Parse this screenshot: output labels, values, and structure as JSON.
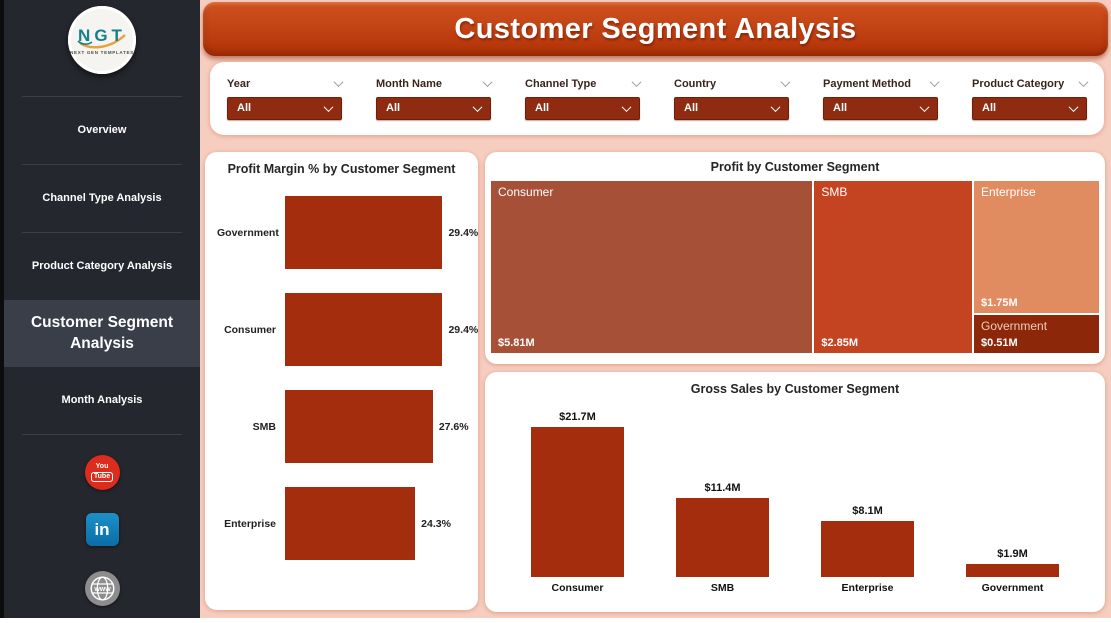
{
  "header": {
    "title": "Customer Segment Analysis"
  },
  "sidebar": {
    "logo": {
      "text": "NGT",
      "subtext": "NEXT GEN TEMPLATES"
    },
    "items": [
      {
        "label": "Overview",
        "active": false
      },
      {
        "label": "Channel Type Analysis",
        "active": false
      },
      {
        "label": "Product Category Analysis",
        "active": false
      },
      {
        "label": "Customer Segment Analysis",
        "active": true
      },
      {
        "label": "Month Analysis",
        "active": false
      }
    ],
    "social": [
      {
        "icon": "youtube-icon",
        "line1": "You",
        "line2": "Tube",
        "color": "#DD2C1E"
      },
      {
        "icon": "linkedin-icon",
        "text": "in",
        "color": "#1380B5"
      },
      {
        "icon": "website-globe-icon",
        "text": "www",
        "color": "#8D8D8D"
      }
    ]
  },
  "filters": [
    {
      "label": "Year",
      "value": "All"
    },
    {
      "label": "Month Name",
      "value": "All"
    },
    {
      "label": "Channel Type",
      "value": "All"
    },
    {
      "label": "Country",
      "value": "All"
    },
    {
      "label": "Payment Method",
      "value": "All"
    },
    {
      "label": "Product Category",
      "value": "All"
    }
  ],
  "chart_data": [
    {
      "type": "bar",
      "orientation": "horizontal",
      "title": "Profit Margin % by Customer Segment",
      "categories": [
        "Government",
        "Consumer",
        "SMB",
        "Enterprise"
      ],
      "values": [
        29.4,
        29.4,
        27.6,
        24.3
      ],
      "value_labels": [
        "29.4%",
        "29.4%",
        "27.6%",
        "24.3%"
      ],
      "bar_color": "#A32D0C",
      "axes": "none",
      "legend": "none"
    },
    {
      "type": "treemap",
      "title": "Profit by Customer Segment",
      "items": [
        {
          "name": "Consumer",
          "value": 5.81,
          "value_label": "$5.81M",
          "color": "#A65038",
          "label_color": "#FFFFFF"
        },
        {
          "name": "SMB",
          "value": 2.85,
          "value_label": "$2.85M",
          "color": "#C44320",
          "label_color": "#FFFFFF"
        },
        {
          "name": "Enterprise",
          "value": 1.75,
          "value_label": "$1.75M",
          "color": "#E18B60",
          "label_color": "#FFFFFF"
        },
        {
          "name": "Government",
          "value": 0.51,
          "value_label": "$0.51M",
          "color": "#8C2809",
          "label_color": "#F3CDBA"
        }
      ]
    },
    {
      "type": "bar",
      "orientation": "vertical",
      "title": "Gross Sales by Customer Segment",
      "categories": [
        "Consumer",
        "SMB",
        "Enterprise",
        "Government"
      ],
      "values": [
        21.7,
        11.4,
        8.1,
        1.9
      ],
      "value_labels": [
        "$21.7M",
        "$11.4M",
        "$8.1M",
        "$1.9M"
      ],
      "bar_color": "#A32D0C",
      "axes": "none",
      "legend": "none"
    }
  ],
  "colors": {
    "page_bg": "#F6CEC0",
    "header_top": "#D0521F",
    "header_bottom": "#B23208",
    "filter_box": "#8E2B10",
    "bar": "#A32D0C",
    "sidebar_bg": "#25272E",
    "sidebar_active": "#3A3E49"
  }
}
